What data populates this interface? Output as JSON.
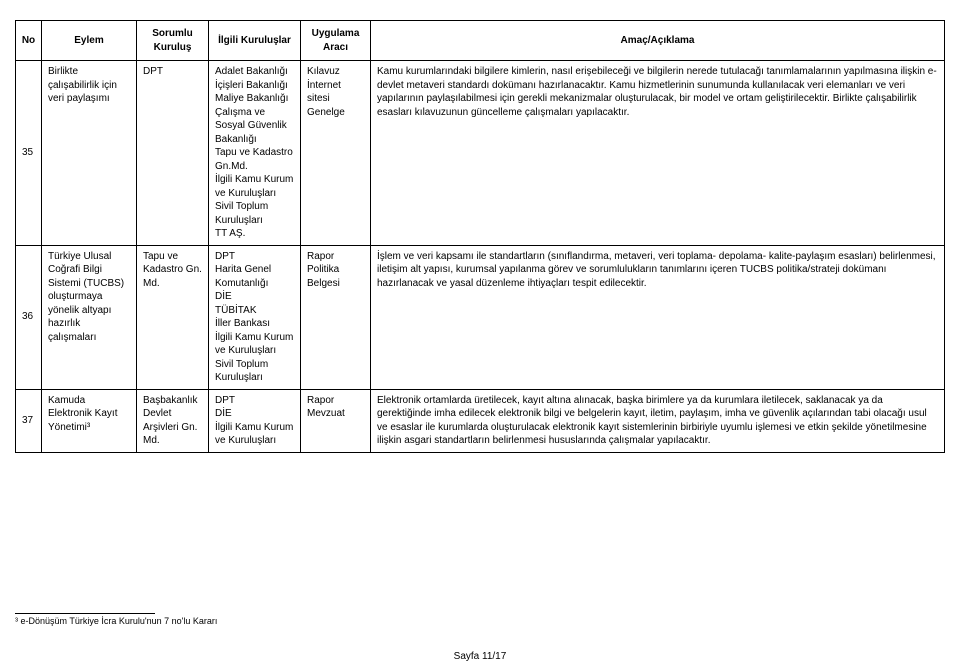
{
  "columns": {
    "no": "No",
    "eylem": "Eylem",
    "sorumlu": "Sorumlu Kuruluş",
    "ilgili": "İlgili Kuruluşlar",
    "arac": "Uygulama Aracı",
    "amac": "Amaç/Açıklama"
  },
  "rows": [
    {
      "no": "35",
      "eylem": "Birlikte çalışabilirlik için veri paylaşımı",
      "sorumlu": "DPT",
      "ilgili": "Adalet Bakanlığı\nİçişleri Bakanlığı\nMaliye Bakanlığı\nÇalışma ve Sosyal Güvenlik Bakanlığı\nTapu ve Kadastro Gn.Md.\nİlgili Kamu Kurum ve Kuruluşları\nSivil Toplum Kuruluşları\nTT AŞ.",
      "arac": "Kılavuz\nİnternet sitesi\nGenelge",
      "amac": "Kamu kurumlarındaki bilgilere kimlerin, nasıl erişebileceği ve bilgilerin nerede tutulacağı tanımlamalarının yapılmasına ilişkin e-devlet metaveri standardı dokümanı hazırlanacaktır. Kamu hizmetlerinin sunumunda kullanılacak veri elemanları ve veri yapılarının paylaşılabilmesi için gerekli mekanizmalar oluşturulacak, bir model ve ortam geliştirilecektir. Birlikte çalışabilirlik esasları kılavuzunun güncelleme çalışmaları yapılacaktır."
    },
    {
      "no": "36",
      "eylem": "Türkiye Ulusal Coğrafi Bilgi Sistemi (TUCBS) oluşturmaya yönelik altyapı hazırlık çalışmaları",
      "sorumlu": "Tapu ve Kadastro Gn. Md.",
      "ilgili": "DPT\nHarita Genel Komutanlığı\nDİE\nTÜBİTAK\nİller Bankası\nİlgili Kamu Kurum ve Kuruluşları\nSivil Toplum Kuruluşları",
      "arac": "Rapor\nPolitika Belgesi",
      "amac": "İşlem ve veri kapsamı ile standartların (sınıflandırma, metaveri, veri toplama- depolama- kalite-paylaşım esasları) belirlenmesi, iletişim alt yapısı, kurumsal yapılanma görev ve sorumlulukların tanımlarını içeren TUCBS politika/strateji dokümanı hazırlanacak ve yasal düzenleme ihtiyaçları tespit edilecektir."
    },
    {
      "no": "37",
      "eylem": "Kamuda Elektronik Kayıt Yönetimi³",
      "sorumlu": "Başbakanlık Devlet Arşivleri Gn. Md.",
      "ilgili": "DPT\nDİE\nİlgili Kamu Kurum ve Kuruluşları",
      "arac": "Rapor\nMevzuat",
      "amac": "Elektronik ortamlarda üretilecek, kayıt altına alınacak, başka birimlere ya da kurumlara iletilecek, saklanacak ya da gerektiğinde imha edilecek elektronik bilgi ve belgelerin kayıt, iletim, paylaşım, imha ve güvenlik açılarından tabi olacağı usul ve esaslar ile kurumlarda oluşturulacak elektronik kayıt sistemlerinin birbiriyle uyumlu işlemesi ve etkin şekilde yönetilmesine ilişkin asgari standartların belirlenmesi hususlarında çalışmalar yapılacaktır."
    }
  ],
  "footnote": "³ e-Dönüşüm Türkiye İcra Kurulu'nun 7 no'lu Kararı",
  "pageNumber": "Sayfa 11/17"
}
